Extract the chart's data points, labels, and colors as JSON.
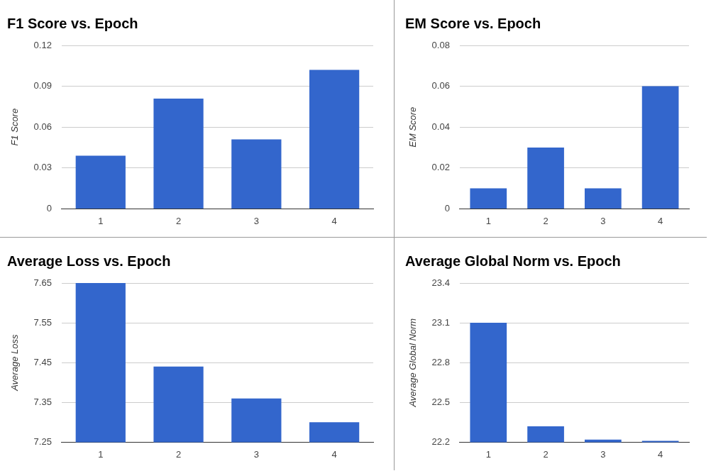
{
  "chart_data": [
    {
      "type": "bar",
      "title": "F1 Score vs. Epoch",
      "ylabel": "F1 Score",
      "categories": [
        "1",
        "2",
        "3",
        "4"
      ],
      "values": [
        0.039,
        0.081,
        0.051,
        0.102
      ],
      "color": "#3366cc",
      "ylim": [
        0,
        0.12
      ],
      "yticks": [
        0,
        0.03,
        0.06,
        0.09,
        0.12
      ],
      "grid": "y",
      "legend": false
    },
    {
      "type": "bar",
      "title": "EM Score vs. Epoch",
      "ylabel": "EM Score",
      "categories": [
        "1",
        "2",
        "3",
        "4"
      ],
      "values": [
        0.01,
        0.03,
        0.01,
        0.06
      ],
      "color": "#3366cc",
      "ylim": [
        0,
        0.08
      ],
      "yticks": [
        0,
        0.02,
        0.04,
        0.06,
        0.08
      ],
      "grid": "y",
      "legend": false
    },
    {
      "type": "bar",
      "title": "Average Loss vs. Epoch",
      "ylabel": "Average Loss",
      "categories": [
        "1",
        "2",
        "3",
        "4"
      ],
      "values": [
        7.65,
        7.44,
        7.36,
        7.3
      ],
      "color": "#3366cc",
      "ylim": [
        7.25,
        7.65
      ],
      "yticks": [
        7.25,
        7.35,
        7.45,
        7.55,
        7.65
      ],
      "grid": "y",
      "legend": false
    },
    {
      "type": "bar",
      "title": "Average Global Norm vs. Epoch",
      "ylabel": "Average Global Norm",
      "categories": [
        "1",
        "2",
        "3",
        "4"
      ],
      "values": [
        23.1,
        22.32,
        22.22,
        22.21
      ],
      "color": "#3366cc",
      "ylim": [
        22.2,
        23.4
      ],
      "yticks": [
        22.2,
        22.5,
        22.8,
        23.1,
        23.4
      ],
      "grid": "y",
      "legend": false
    }
  ]
}
